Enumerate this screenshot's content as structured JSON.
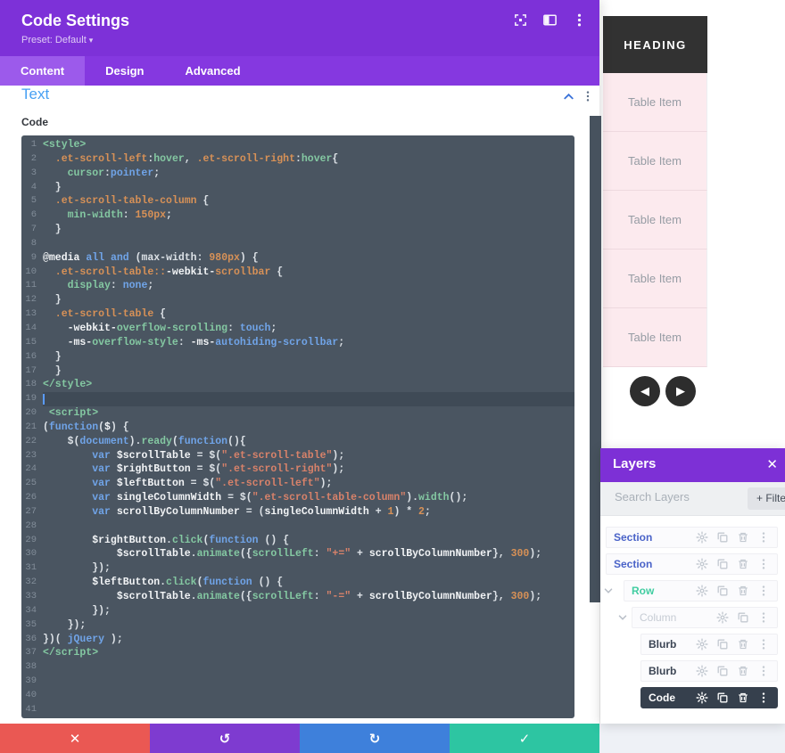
{
  "modal": {
    "title": "Code Settings",
    "preset": "Preset: Default",
    "preset_caret": "▾",
    "tabs": [
      {
        "label": "Content",
        "active": true
      },
      {
        "label": "Design",
        "active": false
      },
      {
        "label": "Advanced",
        "active": false
      }
    ],
    "header_icons": [
      "expand-icon",
      "split-view-icon",
      "menu-icon"
    ],
    "section_title": "Text",
    "field_label": "Code",
    "footer": {
      "discard_glyph": "✕",
      "undo_glyph": "↺",
      "redo_glyph": "↻",
      "save_glyph": "✓"
    }
  },
  "code_editor": {
    "active_line": 19,
    "total_lines": 41,
    "lines": [
      [
        [
          "tag",
          "<style>"
        ]
      ],
      [
        [
          "sel",
          "  .et-scroll-left"
        ],
        [
          "plain",
          ":"
        ],
        [
          "tag",
          "hover"
        ],
        [
          "plain",
          ", "
        ],
        [
          "sel",
          ".et-scroll-right"
        ],
        [
          "plain",
          ":"
        ],
        [
          "tag",
          "hover"
        ],
        [
          "plain",
          "{"
        ]
      ],
      [
        [
          "prop",
          "    cursor"
        ],
        [
          "plain",
          ":"
        ],
        [
          "val",
          "pointer"
        ],
        [
          "plain",
          ";"
        ]
      ],
      [
        [
          "plain",
          "  }"
        ]
      ],
      [
        [
          "sel",
          "  .et-scroll-table-column"
        ],
        [
          "plain",
          " {"
        ]
      ],
      [
        [
          "prop",
          "    min-width"
        ],
        [
          "plain",
          ": "
        ],
        [
          "num",
          "150px"
        ],
        [
          "plain",
          ";"
        ]
      ],
      [
        [
          "plain",
          "  }"
        ]
      ],
      [],
      [
        [
          "def",
          "@media"
        ],
        [
          "plain",
          " "
        ],
        [
          "val",
          "all"
        ],
        [
          "plain",
          " "
        ],
        [
          "val",
          "and"
        ],
        [
          "plain",
          " (max-width: "
        ],
        [
          "num",
          "980px"
        ],
        [
          "plain",
          ") {"
        ]
      ],
      [
        [
          "sel",
          "  .et-scroll-table::"
        ],
        [
          "def",
          "-webkit-"
        ],
        [
          "sel",
          "scrollbar"
        ],
        [
          "plain",
          " {"
        ]
      ],
      [
        [
          "prop",
          "    display"
        ],
        [
          "plain",
          ": "
        ],
        [
          "val",
          "none"
        ],
        [
          "plain",
          ";"
        ]
      ],
      [
        [
          "plain",
          "  }"
        ]
      ],
      [
        [
          "sel",
          "  .et-scroll-table"
        ],
        [
          "plain",
          " {"
        ]
      ],
      [
        [
          "def",
          "    -webkit-"
        ],
        [
          "prop",
          "overflow-scrolling"
        ],
        [
          "plain",
          ": "
        ],
        [
          "val",
          "touch"
        ],
        [
          "plain",
          ";"
        ]
      ],
      [
        [
          "def",
          "    -ms-"
        ],
        [
          "prop",
          "overflow-style"
        ],
        [
          "plain",
          ": "
        ],
        [
          "def",
          "-ms-"
        ],
        [
          "val",
          "autohiding-scrollbar"
        ],
        [
          "plain",
          ";"
        ]
      ],
      [
        [
          "plain",
          "  }"
        ]
      ],
      [
        [
          "plain",
          "  }"
        ]
      ],
      [
        [
          "tag",
          "</style>"
        ]
      ],
      [],
      [
        [
          "tag",
          " <script>"
        ]
      ],
      [
        [
          "plain",
          "("
        ],
        [
          "kw",
          "function"
        ],
        [
          "plain",
          "("
        ],
        [
          "def",
          "$"
        ],
        [
          "plain",
          ") {"
        ]
      ],
      [
        [
          "plain",
          "    $("
        ],
        [
          "val",
          "document"
        ],
        [
          "plain",
          ")."
        ],
        [
          "prop",
          "ready"
        ],
        [
          "plain",
          "("
        ],
        [
          "kw",
          "function"
        ],
        [
          "plain",
          "(){"
        ]
      ],
      [
        [
          "plain",
          "        "
        ],
        [
          "kw",
          "var"
        ],
        [
          "plain",
          " "
        ],
        [
          "def",
          "$scrollTable"
        ],
        [
          "plain",
          " = $("
        ],
        [
          "str",
          "\".et-scroll-table\""
        ],
        [
          "plain",
          ");"
        ]
      ],
      [
        [
          "plain",
          "        "
        ],
        [
          "kw",
          "var"
        ],
        [
          "plain",
          " "
        ],
        [
          "def",
          "$rightButton"
        ],
        [
          "plain",
          " = $("
        ],
        [
          "str",
          "\".et-scroll-right\""
        ],
        [
          "plain",
          ");"
        ]
      ],
      [
        [
          "plain",
          "        "
        ],
        [
          "kw",
          "var"
        ],
        [
          "plain",
          " "
        ],
        [
          "def",
          "$leftButton"
        ],
        [
          "plain",
          " = $("
        ],
        [
          "str",
          "\".et-scroll-left\""
        ],
        [
          "plain",
          ");"
        ]
      ],
      [
        [
          "plain",
          "        "
        ],
        [
          "kw",
          "var"
        ],
        [
          "plain",
          " "
        ],
        [
          "def",
          "singleColumnWidth"
        ],
        [
          "plain",
          " = $("
        ],
        [
          "str",
          "\".et-scroll-table-column\""
        ],
        [
          "plain",
          ")."
        ],
        [
          "prop",
          "width"
        ],
        [
          "plain",
          "();"
        ]
      ],
      [
        [
          "plain",
          "        "
        ],
        [
          "kw",
          "var"
        ],
        [
          "plain",
          " "
        ],
        [
          "def",
          "scrollByColumnNumber"
        ],
        [
          "plain",
          " = ("
        ],
        [
          "def",
          "singleColumnWidth"
        ],
        [
          "plain",
          " + "
        ],
        [
          "num",
          "1"
        ],
        [
          "plain",
          ") * "
        ],
        [
          "num",
          "2"
        ],
        [
          "plain",
          ";"
        ]
      ],
      [],
      [
        [
          "plain",
          "        "
        ],
        [
          "def",
          "$rightButton"
        ],
        [
          "plain",
          "."
        ],
        [
          "prop",
          "click"
        ],
        [
          "plain",
          "("
        ],
        [
          "kw",
          "function"
        ],
        [
          "plain",
          " () {"
        ]
      ],
      [
        [
          "plain",
          "            "
        ],
        [
          "def",
          "$scrollTable"
        ],
        [
          "plain",
          "."
        ],
        [
          "prop",
          "animate"
        ],
        [
          "plain",
          "({"
        ],
        [
          "prop",
          "scrollLeft"
        ],
        [
          "plain",
          ": "
        ],
        [
          "str",
          "\"+=\""
        ],
        [
          "plain",
          " + "
        ],
        [
          "def",
          "scrollByColumnNumber"
        ],
        [
          "plain",
          "}, "
        ],
        [
          "num",
          "300"
        ],
        [
          "plain",
          ");"
        ]
      ],
      [
        [
          "plain",
          "        });"
        ]
      ],
      [
        [
          "plain",
          "        "
        ],
        [
          "def",
          "$leftButton"
        ],
        [
          "plain",
          "."
        ],
        [
          "prop",
          "click"
        ],
        [
          "plain",
          "("
        ],
        [
          "kw",
          "function"
        ],
        [
          "plain",
          " () {"
        ]
      ],
      [
        [
          "plain",
          "            "
        ],
        [
          "def",
          "$scrollTable"
        ],
        [
          "plain",
          "."
        ],
        [
          "prop",
          "animate"
        ],
        [
          "plain",
          "({"
        ],
        [
          "prop",
          "scrollLeft"
        ],
        [
          "plain",
          ": "
        ],
        [
          "str",
          "\"-=\""
        ],
        [
          "plain",
          " + "
        ],
        [
          "def",
          "scrollByColumnNumber"
        ],
        [
          "plain",
          "}, "
        ],
        [
          "num",
          "300"
        ],
        [
          "plain",
          ");"
        ]
      ],
      [
        [
          "plain",
          "        });"
        ]
      ],
      [
        [
          "plain",
          "    });"
        ]
      ],
      [
        [
          "plain",
          "})( "
        ],
        [
          "val",
          "jQuery"
        ],
        [
          "plain",
          " );"
        ]
      ],
      [
        [
          "tag",
          "</script>"
        ]
      ],
      [],
      [],
      [],
      []
    ]
  },
  "preview": {
    "table_heading": "HEADING",
    "table_items": [
      "Table Item",
      "Table Item",
      "Table Item",
      "Table Item",
      "Table Item"
    ],
    "prev_glyph": "◀",
    "next_glyph": "▶"
  },
  "layers_panel": {
    "title": "Layers",
    "close_glyph": "✕",
    "search_placeholder": "Search Layers",
    "filter_label": "+ Filter",
    "items": [
      {
        "label": "Section",
        "type": "section",
        "indent": 0,
        "chevron": false,
        "icons": [
          "settings",
          "duplicate",
          "delete",
          "menu"
        ],
        "selected": false
      },
      {
        "label": "Section",
        "type": "section",
        "indent": 0,
        "chevron": false,
        "icons": [
          "settings",
          "duplicate",
          "delete",
          "menu"
        ],
        "selected": false
      },
      {
        "label": "Row",
        "type": "row",
        "indent": 1,
        "chevron": true,
        "icons": [
          "settings",
          "duplicate",
          "delete",
          "menu"
        ],
        "selected": false
      },
      {
        "label": "Column",
        "type": "column",
        "indent": 2,
        "chevron": true,
        "icons": [
          "settings",
          "duplicate",
          "menu"
        ],
        "selected": false
      },
      {
        "label": "Blurb",
        "type": "module",
        "indent": 3,
        "chevron": false,
        "icons": [
          "settings",
          "duplicate",
          "delete",
          "menu"
        ],
        "selected": false
      },
      {
        "label": "Blurb",
        "type": "module",
        "indent": 3,
        "chevron": false,
        "icons": [
          "settings",
          "duplicate",
          "delete",
          "menu"
        ],
        "selected": false
      },
      {
        "label": "Code",
        "type": "module",
        "indent": 3,
        "chevron": false,
        "icons": [
          "settings",
          "duplicate",
          "delete",
          "menu"
        ],
        "selected": true
      }
    ]
  },
  "colors": {
    "modal_header": "#7d31d8",
    "tab_bar": "#8538e0",
    "tab_active": "#9c5aeb",
    "editor_bg": "#4a5561",
    "discard": "#ea5853",
    "undo": "#7e3bd0",
    "redo": "#3e80db",
    "save": "#2dc5a2",
    "table_header": "#323232",
    "table_row": "#fceaee",
    "selected_layer": "#36404d"
  }
}
